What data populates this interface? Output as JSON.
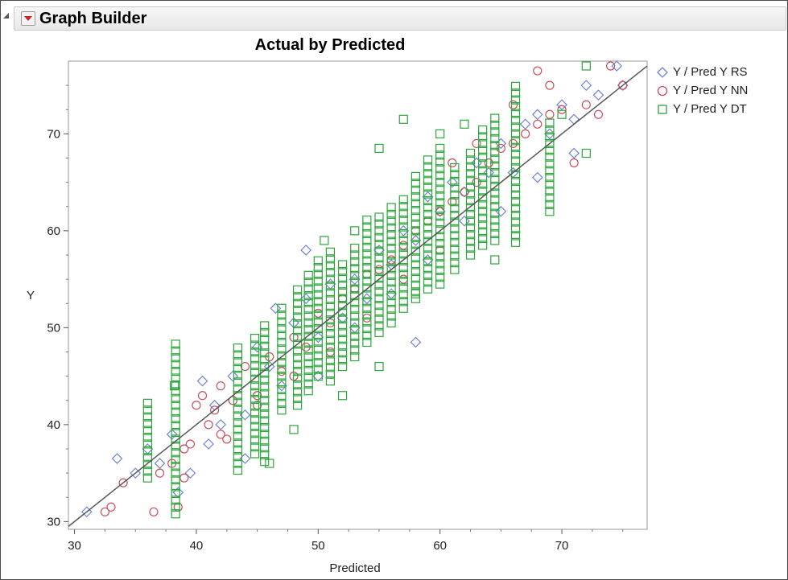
{
  "window": {
    "title": "Graph Builder"
  },
  "chart_data": {
    "type": "scatter",
    "title": "Actual by Predicted",
    "xlabel": "Predicted",
    "ylabel": "Y",
    "xlim": [
      29.5,
      77
    ],
    "ylim": [
      29.2,
      77.5
    ],
    "xticks": [
      30,
      40,
      50,
      60,
      70
    ],
    "yticks": [
      30,
      40,
      50,
      60,
      70
    ],
    "grid": false,
    "legend_position": "right",
    "reference_line": {
      "type": "identity",
      "x": [
        29.5,
        77
      ],
      "y": [
        29.5,
        77
      ],
      "color": "#555555"
    },
    "series": [
      {
        "name": "Y / Pred Y RS",
        "marker": "diamond",
        "color": "#6f84d8",
        "points": [
          [
            31,
            31
          ],
          [
            33.5,
            36.5
          ],
          [
            35,
            35
          ],
          [
            36,
            37.5
          ],
          [
            37,
            36
          ],
          [
            38,
            39
          ],
          [
            38.5,
            33
          ],
          [
            39.5,
            35
          ],
          [
            40.5,
            44.5
          ],
          [
            41.5,
            42
          ],
          [
            42,
            40
          ],
          [
            43,
            45
          ],
          [
            44,
            41
          ],
          [
            45,
            48
          ],
          [
            46,
            46
          ],
          [
            46.5,
            52
          ],
          [
            48,
            50.5
          ],
          [
            49,
            53
          ],
          [
            50,
            49
          ],
          [
            51,
            54.5
          ],
          [
            52,
            51
          ],
          [
            53,
            55
          ],
          [
            54,
            53
          ],
          [
            55,
            58
          ],
          [
            56,
            56.5
          ],
          [
            57,
            60
          ],
          [
            58,
            59
          ],
          [
            59,
            63.5
          ],
          [
            60,
            62
          ],
          [
            61,
            65
          ],
          [
            62,
            64
          ],
          [
            63,
            67
          ],
          [
            64,
            66
          ],
          [
            65,
            69
          ],
          [
            66,
            66
          ],
          [
            67,
            71
          ],
          [
            68,
            72
          ],
          [
            69,
            70
          ],
          [
            70,
            73
          ],
          [
            71,
            71.5
          ],
          [
            72,
            75
          ],
          [
            73,
            74
          ],
          [
            74.5,
            77
          ],
          [
            75,
            75
          ],
          [
            41,
            38
          ],
          [
            44,
            36.5
          ],
          [
            47,
            44
          ],
          [
            50,
            45
          ],
          [
            53,
            50
          ],
          [
            56,
            53.5
          ],
          [
            59,
            57
          ],
          [
            62,
            61
          ],
          [
            65,
            62
          ],
          [
            68,
            65.5
          ],
          [
            71,
            68
          ],
          [
            58,
            48.5
          ],
          [
            49,
            58
          ]
        ]
      },
      {
        "name": "Y / Pred Y NN",
        "marker": "circle",
        "color": "#c8505e",
        "points": [
          [
            32.5,
            31
          ],
          [
            33,
            31.5
          ],
          [
            34,
            34
          ],
          [
            36.5,
            31
          ],
          [
            37,
            35
          ],
          [
            38,
            36
          ],
          [
            38.5,
            31.5
          ],
          [
            39,
            34.5
          ],
          [
            39.5,
            38
          ],
          [
            40,
            42
          ],
          [
            40.5,
            43
          ],
          [
            41,
            40
          ],
          [
            41.5,
            41.5
          ],
          [
            42,
            44
          ],
          [
            42.5,
            38.5
          ],
          [
            43,
            42.5
          ],
          [
            44,
            46
          ],
          [
            45,
            43
          ],
          [
            46,
            47
          ],
          [
            47,
            45.5
          ],
          [
            48,
            49
          ],
          [
            49,
            48
          ],
          [
            50,
            51.5
          ],
          [
            51,
            50.5
          ],
          [
            52,
            53
          ],
          [
            53,
            54
          ],
          [
            54,
            55.5
          ],
          [
            55,
            56
          ],
          [
            56,
            57
          ],
          [
            57,
            58.5
          ],
          [
            58,
            60
          ],
          [
            59,
            61
          ],
          [
            60,
            62
          ],
          [
            61,
            63
          ],
          [
            62,
            64
          ],
          [
            63,
            65
          ],
          [
            64,
            67
          ],
          [
            65,
            68.5
          ],
          [
            66,
            69
          ],
          [
            67,
            70
          ],
          [
            68,
            71
          ],
          [
            69,
            72
          ],
          [
            70,
            72.5
          ],
          [
            71,
            67
          ],
          [
            72,
            73
          ],
          [
            73,
            72
          ],
          [
            74,
            77
          ],
          [
            75,
            75
          ],
          [
            69,
            75
          ],
          [
            68,
            76.5
          ],
          [
            66,
            73
          ],
          [
            63,
            69
          ],
          [
            60,
            58
          ],
          [
            57,
            55
          ],
          [
            54,
            51
          ],
          [
            51,
            47.5
          ],
          [
            48,
            45
          ],
          [
            45,
            42
          ],
          [
            42,
            39
          ],
          [
            39,
            37.5
          ],
          [
            61,
            67
          ]
        ]
      },
      {
        "name": "Y / Pred Y DT",
        "marker": "square",
        "color": "#2ea53c",
        "columns": [
          {
            "x": 36.0,
            "ymin": 34.5,
            "ymax": 42.5
          },
          {
            "x": 38.3,
            "ymin": 30.8,
            "ymax": 48.5
          },
          {
            "x": 43.4,
            "ymin": 35.3,
            "ymax": 48.0
          },
          {
            "x": 44.8,
            "ymin": 37.0,
            "ymax": 49.5
          },
          {
            "x": 45.6,
            "ymin": 36.2,
            "ymax": 50.5
          },
          {
            "x": 47.0,
            "ymin": 41.5,
            "ymax": 52.0
          },
          {
            "x": 48.3,
            "ymin": 42.0,
            "ymax": 54.0
          },
          {
            "x": 49.2,
            "ymin": 43.5,
            "ymax": 55.5
          },
          {
            "x": 50.0,
            "ymin": 45.0,
            "ymax": 57.0
          },
          {
            "x": 51.0,
            "ymin": 44.5,
            "ymax": 58.0
          },
          {
            "x": 52.0,
            "ymin": 46.0,
            "ymax": 56.5
          },
          {
            "x": 53.0,
            "ymin": 47.0,
            "ymax": 58.5
          },
          {
            "x": 54.0,
            "ymin": 48.5,
            "ymax": 61.5
          },
          {
            "x": 55.0,
            "ymin": 49.5,
            "ymax": 62.0
          },
          {
            "x": 56.0,
            "ymin": 50.5,
            "ymax": 63.0
          },
          {
            "x": 57.0,
            "ymin": 52.0,
            "ymax": 63.5
          },
          {
            "x": 58.0,
            "ymin": 53.0,
            "ymax": 66.0
          },
          {
            "x": 59.0,
            "ymin": 54.0,
            "ymax": 67.5
          },
          {
            "x": 60.0,
            "ymin": 54.5,
            "ymax": 68.5
          },
          {
            "x": 61.2,
            "ymin": 56.0,
            "ymax": 67.0
          },
          {
            "x": 62.5,
            "ymin": 57.5,
            "ymax": 68.0
          },
          {
            "x": 63.5,
            "ymin": 58.5,
            "ymax": 71.0
          },
          {
            "x": 64.5,
            "ymin": 59.0,
            "ymax": 72.0
          },
          {
            "x": 66.2,
            "ymin": 58.8,
            "ymax": 75.0
          },
          {
            "x": 69.0,
            "ymin": 62.0,
            "ymax": 71.5
          }
        ],
        "points": [
          [
            72,
            77
          ],
          [
            72,
            68
          ],
          [
            62,
            71
          ],
          [
            57,
            71.5
          ],
          [
            53,
            60
          ],
          [
            50.5,
            59
          ],
          [
            55,
            68.5
          ],
          [
            60,
            70
          ],
          [
            46,
            36
          ],
          [
            48,
            39.5
          ],
          [
            52,
            43
          ],
          [
            55,
            46
          ],
          [
            58,
            53.5
          ],
          [
            64.5,
            57
          ],
          [
            70,
            72
          ],
          [
            38.2,
            44
          ]
        ]
      }
    ]
  }
}
